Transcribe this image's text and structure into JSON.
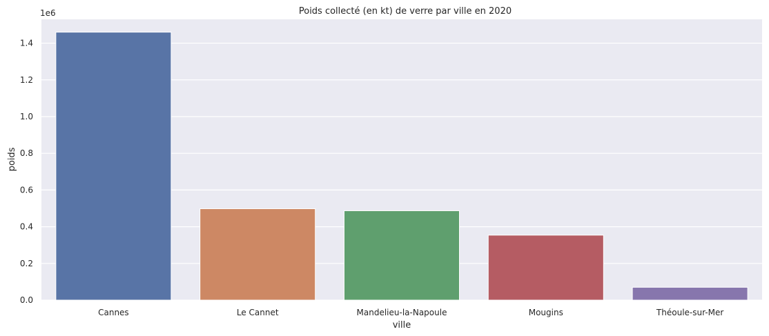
{
  "chart_data": {
    "type": "bar",
    "title": "Poids collecté (en kt) de verre par ville en 2020",
    "xlabel": "ville",
    "ylabel": "poids",
    "y_scale_label": "1e6",
    "categories": [
      "Cannes",
      "Le Cannet",
      "Mandelieu-la-Napoule",
      "Mougins",
      "Théoule-sur-Mer"
    ],
    "values": [
      1460000,
      498000,
      487000,
      354000,
      70000
    ],
    "ylim": [
      0,
      1530000
    ],
    "yticks": [
      0,
      200000,
      400000,
      600000,
      800000,
      1000000,
      1200000,
      1400000
    ],
    "ytick_labels": [
      "0.0",
      "0.2",
      "0.4",
      "0.6",
      "0.8",
      "1.0",
      "1.2",
      "1.4"
    ],
    "colors": [
      "#5874a6",
      "#cd8864",
      "#5f9f6e",
      "#b55c63",
      "#8776ad"
    ],
    "background_color": "#eaeaf2",
    "grid": true,
    "legend": false
  }
}
